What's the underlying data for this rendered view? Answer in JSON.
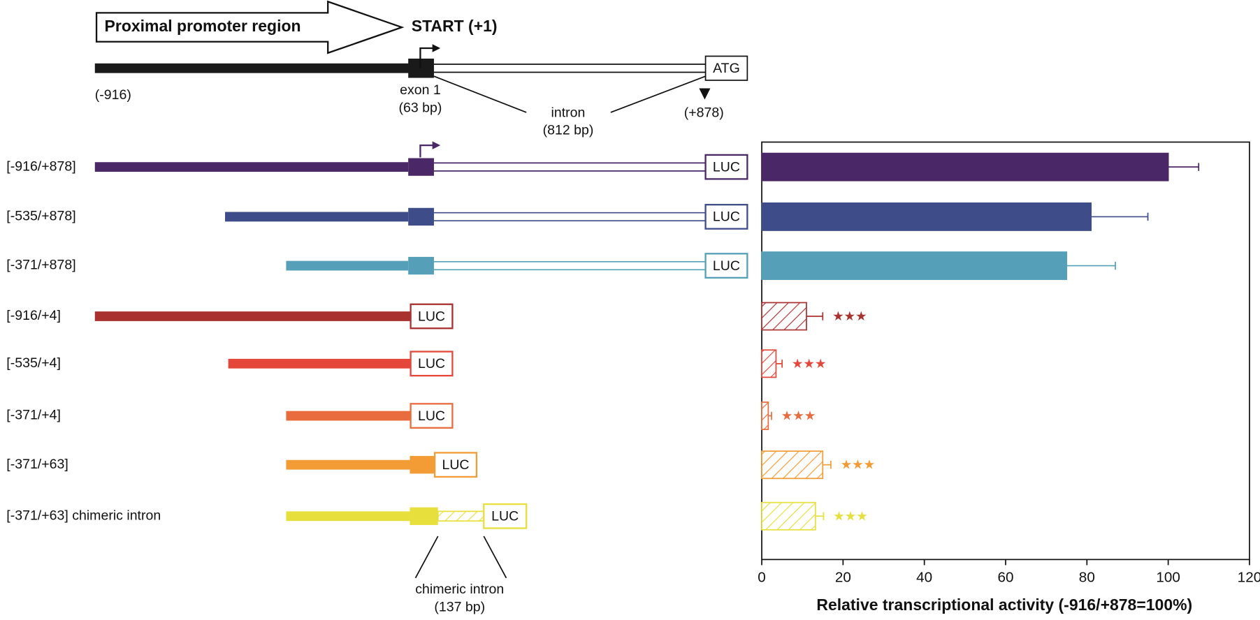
{
  "diagram": {
    "promoter_label": "Proximal promoter region",
    "start_label": "START (+1)",
    "atg_label": "ATG",
    "start_coord": "(-916)",
    "exon_label": "exon 1",
    "exon_size": "(63 bp)",
    "intron_label": "intron",
    "intron_size": "(812 bp)",
    "end_coord": "(+878)",
    "reporter": "LUC",
    "chimeric_label": "chimeric intron",
    "chimeric_size": "(137 bp)"
  },
  "chart_data": {
    "type": "bar",
    "orientation": "horizontal",
    "categories": [
      "[-916/+878]",
      "[-535/+878]",
      "[-371/+878]",
      "[-916/+4]",
      "[-535/+4]",
      "[-371/+4]",
      "[-371/+63]",
      "[-371/+63] chimeric intron"
    ],
    "values": [
      100,
      81,
      75,
      11,
      3.5,
      1.6,
      15,
      13.2
    ],
    "errors": [
      7.5,
      14,
      12,
      4,
      1.5,
      0.8,
      2,
      2
    ],
    "colors": [
      "#4a2766",
      "#3f4c8a",
      "#55a0b8",
      "#a9312f",
      "#e5463a",
      "#e86c3d",
      "#f39b35",
      "#e7df3c"
    ],
    "patterns": [
      "solid",
      "solid",
      "solid",
      "hatched",
      "hatched",
      "hatched",
      "hatched",
      "hatched"
    ],
    "significance": [
      null,
      null,
      null,
      "★★★",
      "★★★",
      "★★★",
      "★★★",
      "★★★"
    ],
    "xlim": [
      0,
      120
    ],
    "xticks": [
      0,
      20,
      40,
      60,
      80,
      100,
      120
    ],
    "xlabel": "Relative transcriptional activity (-916/+878=100%)"
  }
}
